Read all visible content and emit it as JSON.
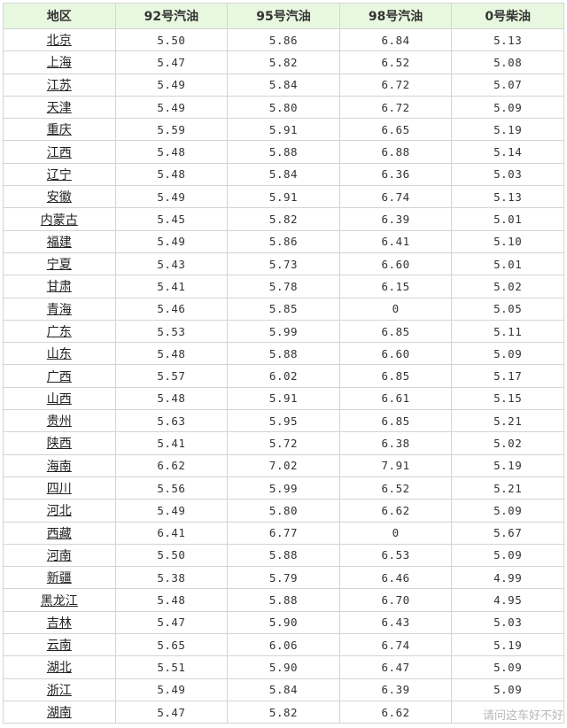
{
  "table": {
    "headers": [
      "地区",
      "92号汽油",
      "95号汽油",
      "98号汽油",
      "0号柴油"
    ],
    "rows": [
      [
        "北京",
        "5.50",
        "5.86",
        "6.84",
        "5.13"
      ],
      [
        "上海",
        "5.47",
        "5.82",
        "6.52",
        "5.08"
      ],
      [
        "江苏",
        "5.49",
        "5.84",
        "6.72",
        "5.07"
      ],
      [
        "天津",
        "5.49",
        "5.80",
        "6.72",
        "5.09"
      ],
      [
        "重庆",
        "5.59",
        "5.91",
        "6.65",
        "5.19"
      ],
      [
        "江西",
        "5.48",
        "5.88",
        "6.88",
        "5.14"
      ],
      [
        "辽宁",
        "5.48",
        "5.84",
        "6.36",
        "5.03"
      ],
      [
        "安徽",
        "5.49",
        "5.91",
        "6.74",
        "5.13"
      ],
      [
        "内蒙古",
        "5.45",
        "5.82",
        "6.39",
        "5.01"
      ],
      [
        "福建",
        "5.49",
        "5.86",
        "6.41",
        "5.10"
      ],
      [
        "宁夏",
        "5.43",
        "5.73",
        "6.60",
        "5.01"
      ],
      [
        "甘肃",
        "5.41",
        "5.78",
        "6.15",
        "5.02"
      ],
      [
        "青海",
        "5.46",
        "5.85",
        "0",
        "5.05"
      ],
      [
        "广东",
        "5.53",
        "5.99",
        "6.85",
        "5.11"
      ],
      [
        "山东",
        "5.48",
        "5.88",
        "6.60",
        "5.09"
      ],
      [
        "广西",
        "5.57",
        "6.02",
        "6.85",
        "5.17"
      ],
      [
        "山西",
        "5.48",
        "5.91",
        "6.61",
        "5.15"
      ],
      [
        "贵州",
        "5.63",
        "5.95",
        "6.85",
        "5.21"
      ],
      [
        "陕西",
        "5.41",
        "5.72",
        "6.38",
        "5.02"
      ],
      [
        "海南",
        "6.62",
        "7.02",
        "7.91",
        "5.19"
      ],
      [
        "四川",
        "5.56",
        "5.99",
        "6.52",
        "5.21"
      ],
      [
        "河北",
        "5.49",
        "5.80",
        "6.62",
        "5.09"
      ],
      [
        "西藏",
        "6.41",
        "6.77",
        "0",
        "5.67"
      ],
      [
        "河南",
        "5.50",
        "5.88",
        "6.53",
        "5.09"
      ],
      [
        "新疆",
        "5.38",
        "5.79",
        "6.46",
        "4.99"
      ],
      [
        "黑龙江",
        "5.48",
        "5.88",
        "6.70",
        "4.95"
      ],
      [
        "吉林",
        "5.47",
        "5.90",
        "6.43",
        "5.03"
      ],
      [
        "云南",
        "5.65",
        "6.06",
        "6.74",
        "5.19"
      ],
      [
        "湖北",
        "5.51",
        "5.90",
        "6.47",
        "5.09"
      ],
      [
        "浙江",
        "5.49",
        "5.84",
        "6.39",
        "5.09"
      ],
      [
        "湖南",
        "5.47",
        "5.82",
        "6.62",
        ""
      ]
    ]
  },
  "watermark": "请问这车好不好",
  "colors": {
    "header_bg": "#e8f8e0",
    "border": "#d4d4d4"
  }
}
